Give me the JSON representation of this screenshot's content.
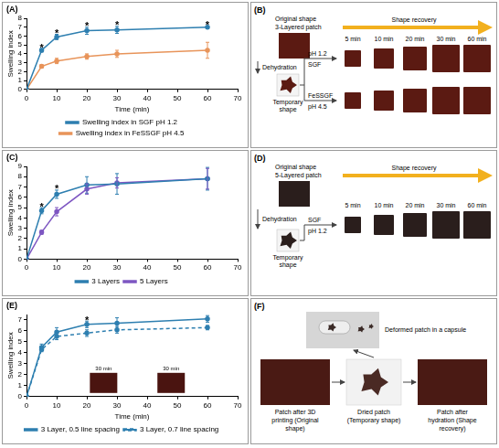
{
  "chart_data": [
    {
      "panel": "(A)",
      "type": "line",
      "x": [
        0,
        5,
        10,
        20,
        30,
        60
      ],
      "xlim": [
        0,
        70
      ],
      "xticks": [
        0,
        10,
        20,
        30,
        40,
        50,
        60,
        70
      ],
      "ylim": [
        0,
        8
      ],
      "yticks": [
        0,
        1,
        2,
        3,
        4,
        5,
        6,
        7,
        8
      ],
      "x_label": "Time (min)",
      "y_label": "Swelling index",
      "grid": false,
      "legend": "bottom",
      "series": [
        {
          "name": "Swelling index in SGF pH 1.2",
          "color": "#2e7fb0",
          "marker": "circle",
          "line_style": "solid",
          "values": [
            0,
            4.4,
            5.9,
            6.6,
            6.7,
            7.0
          ],
          "errors": [
            0,
            0.2,
            0.3,
            0.4,
            0.4,
            0.1
          ]
        },
        {
          "name": "Swelling index in FeSSGF pH 4.5",
          "color": "#e8945a",
          "marker": "circle",
          "line_style": "solid",
          "values": [
            0,
            2.6,
            3.2,
            3.7,
            4.0,
            4.4
          ],
          "errors": [
            0,
            0.2,
            0.3,
            0.3,
            0.4,
            0.9
          ]
        }
      ],
      "significance": {
        "x": [
          5,
          10,
          20,
          30,
          60
        ],
        "text": "*"
      }
    },
    {
      "panel": "(C)",
      "type": "line",
      "x": [
        0,
        5,
        10,
        20,
        30,
        60
      ],
      "xlim": [
        0,
        70
      ],
      "xticks": [
        0,
        10,
        20,
        30,
        40,
        50,
        60,
        70
      ],
      "ylim": [
        0,
        9
      ],
      "yticks": [
        0,
        1,
        2,
        3,
        4,
        5,
        6,
        7,
        8,
        9
      ],
      "y_label": "Swelling index",
      "grid": false,
      "legend": "bottom",
      "series": [
        {
          "name": "3 Layers",
          "color": "#2e7fb0",
          "marker": "circle",
          "line_style": "solid",
          "values": [
            0,
            4.7,
            6.3,
            7.2,
            7.3,
            7.8
          ],
          "errors": [
            0,
            0.3,
            0.4,
            0.8,
            1.0,
            1.1
          ]
        },
        {
          "name": "5 Layers",
          "color": "#7e57c2",
          "marker": "circle",
          "line_style": "solid",
          "values": [
            0,
            2.6,
            4.6,
            6.8,
            7.4,
            7.8
          ],
          "errors": [
            0,
            0.2,
            0.4,
            0.5,
            0.5,
            1.0
          ]
        }
      ],
      "significance": {
        "x": [
          5,
          10
        ],
        "text": "*"
      }
    },
    {
      "panel": "(E)",
      "type": "line",
      "x": [
        0,
        5,
        10,
        20,
        30,
        60
      ],
      "xlim": [
        0,
        70
      ],
      "xticks": [
        0,
        10,
        20,
        30,
        40,
        50,
        60,
        70
      ],
      "ylim": [
        0,
        7.5
      ],
      "yticks": [
        0,
        1,
        2,
        3,
        4,
        5,
        6,
        7
      ],
      "x_label": "Time (min)",
      "y_label": "Swelling index",
      "grid": false,
      "legend": "bottom",
      "series": [
        {
          "name": "3 Layer, 0.5 line spacing",
          "color": "#2e7fb0",
          "marker": "circle",
          "line_style": "solid",
          "values": [
            0,
            4.5,
            5.9,
            6.6,
            6.7,
            7.1
          ],
          "errors": [
            0,
            0.3,
            0.4,
            0.3,
            0.5,
            0.3
          ]
        },
        {
          "name": "3 Layer, 0.7 line spacing",
          "color": "#2e7fb0",
          "marker": "circle",
          "line_style": "dashed",
          "values": [
            0,
            4.3,
            5.5,
            5.8,
            6.1,
            6.3
          ],
          "errors": [
            0,
            0.2,
            0.3,
            0.3,
            0.3,
            0.2
          ]
        }
      ],
      "significance": {
        "x": [
          20
        ],
        "text": "*"
      },
      "insets": [
        "30 min",
        "30 min"
      ]
    }
  ],
  "diagrams": {
    "B": {
      "panel": "(B)",
      "original_label": "Original shape",
      "patch_label": "3-Layered patch",
      "arrow_label": "Shape recovery",
      "step_label": "Dehydration",
      "temporary_label": "Temporary shape",
      "times": [
        "5 min",
        "10 min",
        "20 min",
        "30 min",
        "60 min"
      ],
      "rows": [
        {
          "labels": [
            "pH 1.2",
            "SGF"
          ]
        },
        {
          "labels": [
            "FeSSGF",
            "pH 4.5"
          ]
        }
      ]
    },
    "D": {
      "panel": "(D)",
      "original_label": "Original shape",
      "patch_label": "5-Layered patch",
      "arrow_label": "Shape recovery",
      "step_label": "Dehydration",
      "temporary_label": "Temporary shape",
      "times": [
        "5 min",
        "10 min",
        "20 min",
        "30 min",
        "60 min"
      ],
      "rows": [
        {
          "labels": [
            "SGF",
            "pH 1.2"
          ]
        }
      ]
    },
    "F": {
      "panel": "(F)",
      "capsule_label": "Deformed patch in a capsule",
      "steps": [
        "Patch after 3D printing (Original shape)",
        "Dried patch (Temporary shape)",
        "Patch after hydration (Shape recovery)"
      ]
    }
  }
}
